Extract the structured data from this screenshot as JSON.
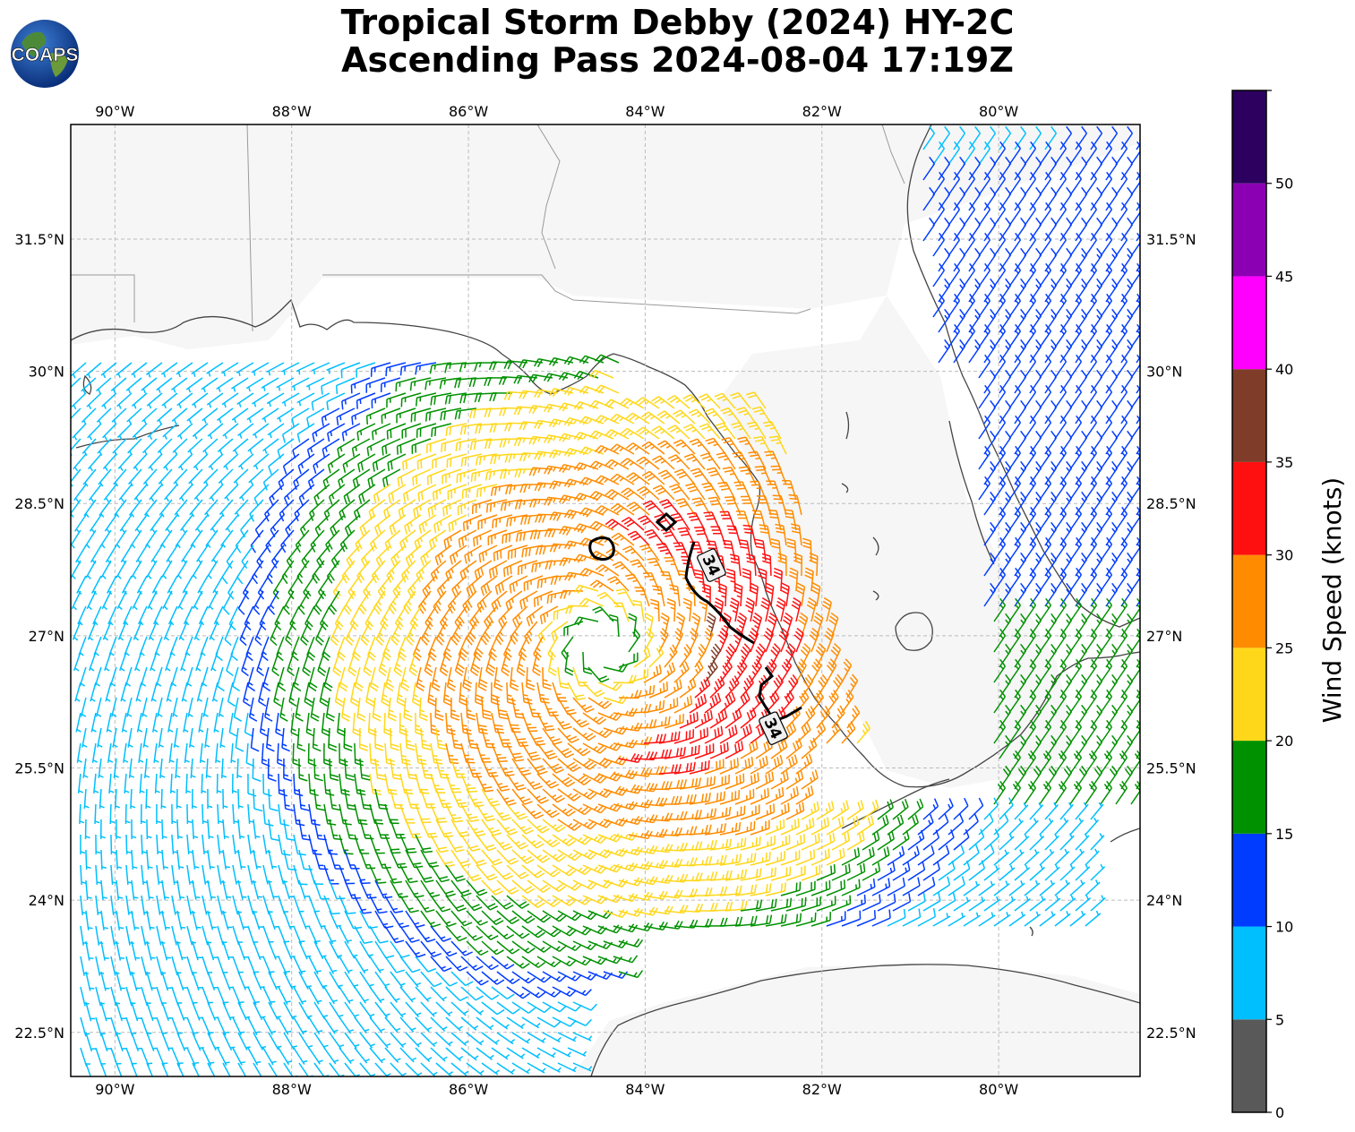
{
  "title": {
    "line1": "Tropical Storm Debby (2024) HY-2C",
    "line2": "Ascending Pass 2024-08-04 17:19Z"
  },
  "logo": {
    "text": "COAPS",
    "icon": "globe-logo-icon"
  },
  "map": {
    "lon_range": [
      -90.5,
      -78.4
    ],
    "lat_range": [
      22.0,
      32.8
    ],
    "lon_ticks": [
      {
        "value": -90,
        "label": "90°W"
      },
      {
        "value": -88,
        "label": "88°W"
      },
      {
        "value": -86,
        "label": "86°W"
      },
      {
        "value": -84,
        "label": "84°W"
      },
      {
        "value": -82,
        "label": "82°W"
      },
      {
        "value": -80,
        "label": "80°W"
      }
    ],
    "lat_ticks": [
      {
        "value": 31.5,
        "label": "31.5°N"
      },
      {
        "value": 30,
        "label": "30°N"
      },
      {
        "value": 28.5,
        "label": "28.5°N"
      },
      {
        "value": 27,
        "label": "27°N"
      },
      {
        "value": 25.5,
        "label": "25.5°N"
      },
      {
        "value": 24,
        "label": "24°N"
      },
      {
        "value": 22.5,
        "label": "22.5°N"
      }
    ],
    "grid": true,
    "storm_center": {
      "lon": -84.5,
      "lat": 26.9
    },
    "contour_label": "34",
    "contours": [
      {
        "label_at": {
          "lon": -83.25,
          "lat": 27.8
        }
      },
      {
        "label_at": {
          "lon": -82.55,
          "lat": 25.95
        }
      }
    ]
  },
  "colorbar": {
    "label": "Wind Speed (knots)",
    "bins": [
      {
        "min": 0,
        "max": 5,
        "color": "#595959"
      },
      {
        "min": 5,
        "max": 10,
        "color": "#00bfff"
      },
      {
        "min": 10,
        "max": 15,
        "color": "#003cff"
      },
      {
        "min": 15,
        "max": 20,
        "color": "#009100"
      },
      {
        "min": 20,
        "max": 25,
        "color": "#ffd71a"
      },
      {
        "min": 25,
        "max": 30,
        "color": "#ff8c00"
      },
      {
        "min": 30,
        "max": 35,
        "color": "#ff1010"
      },
      {
        "min": 35,
        "max": 40,
        "color": "#7f3c28"
      },
      {
        "min": 40,
        "max": 45,
        "color": "#ff00ff"
      },
      {
        "min": 45,
        "max": 50,
        "color": "#8c00b4"
      },
      {
        "min": 50,
        "max": 55,
        "color": "#2d005f"
      }
    ],
    "ticks": [
      0,
      5,
      10,
      15,
      20,
      25,
      30,
      35,
      40,
      45,
      50
    ]
  },
  "chart_data": {
    "type": "wind-barb-map",
    "title": "Tropical Storm Debby (2024) HY-2C Ascending Pass 2024-08-04 17:19Z",
    "units": "knots",
    "field": "cyclonic wind barbs around storm center near 84.5°W 26.9°N; maximum ~30-40 kt east and southeast of center",
    "contour_value_kt": 34
  }
}
